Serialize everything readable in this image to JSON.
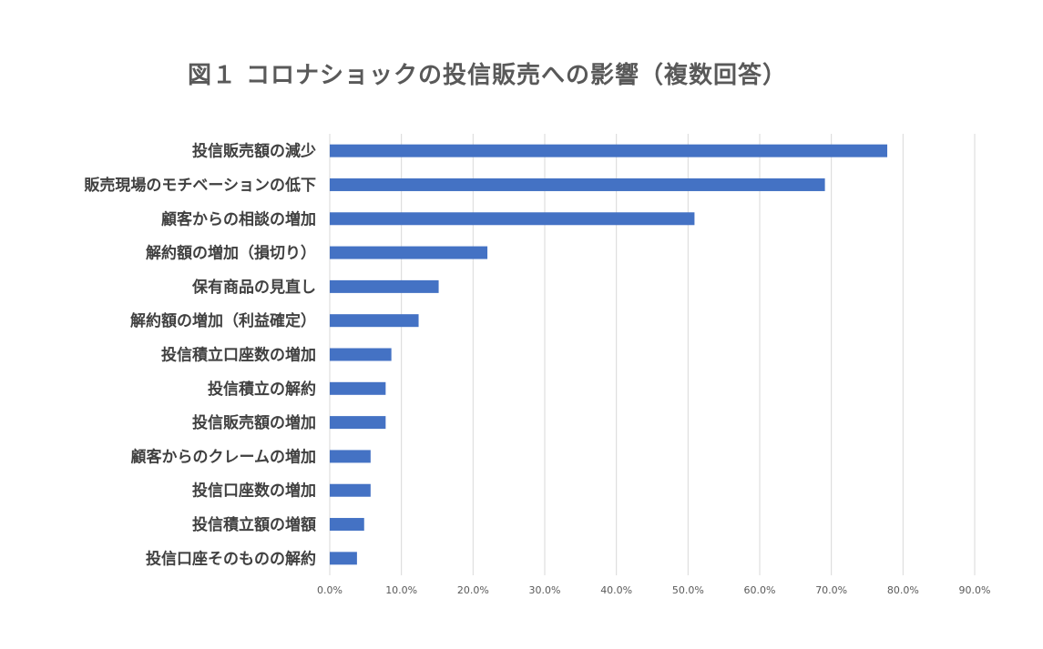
{
  "chart_data": {
    "type": "bar",
    "orientation": "horizontal",
    "title": "図１ コロナショックの投信販売への影響（複数回答）",
    "xlabel": "",
    "ylabel": "",
    "categories": [
      "投信販売額の減少",
      "販売現場のモチベーションの低下",
      "顧客からの相談の増加",
      "解約額の増加（損切り）",
      "保有商品の見直し",
      "解約額の増加（利益確定）",
      "投信積立口座数の増加",
      "投信積立の解約",
      "投信販売額の増加",
      "顧客からのクレームの増加",
      "投信口座数の増加",
      "投信積立額の増額",
      "投信口座そのものの解約"
    ],
    "values": [
      77.8,
      69.1,
      50.9,
      22.0,
      15.2,
      12.4,
      8.6,
      7.8,
      7.8,
      5.7,
      5.7,
      4.8,
      3.8
    ],
    "xlim": [
      0,
      90
    ],
    "x_ticks": [
      "0.0%",
      "10.0%",
      "20.0%",
      "30.0%",
      "40.0%",
      "50.0%",
      "60.0%",
      "70.0%",
      "80.0%",
      "90.0%"
    ],
    "grid": "vertical",
    "bar_color": "#4472C4",
    "legend": "none"
  }
}
